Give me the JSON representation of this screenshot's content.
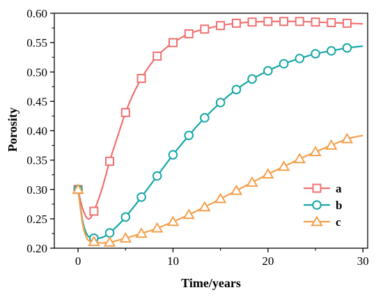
{
  "chart_data": {
    "type": "line",
    "title": "",
    "xlabel": "Time/years",
    "ylabel": "Porosity",
    "xlim": [
      -2.5,
      30.5
    ],
    "ylim": [
      0.2,
      0.6
    ],
    "xticks": [
      0,
      10,
      20,
      30
    ],
    "xtick_labels": [
      "0",
      "10",
      "20",
      "30"
    ],
    "yticks": [
      0.2,
      0.25,
      0.3,
      0.35,
      0.4,
      0.45,
      0.5,
      0.55,
      0.6
    ],
    "ytick_labels": [
      "0.20",
      "0.25",
      "0.30",
      "0.35",
      "0.40",
      "0.45",
      "0.50",
      "0.55",
      "0.60"
    ],
    "grid": false,
    "legend_position": "right",
    "series": [
      {
        "name": "a",
        "color": "#f07070",
        "marker": "square",
        "x": [
          0,
          1.67,
          3.33,
          5.0,
          6.67,
          8.33,
          10.0,
          11.67,
          13.33,
          15.0,
          16.67,
          18.33,
          20.0,
          21.67,
          23.33,
          25.0,
          26.67,
          28.33
        ],
        "y": [
          0.3,
          0.263,
          0.348,
          0.431,
          0.489,
          0.527,
          0.55,
          0.565,
          0.573,
          0.579,
          0.583,
          0.585,
          0.586,
          0.586,
          0.586,
          0.585,
          0.584,
          0.583
        ],
        "curve_x": [
          0,
          0.4,
          0.8,
          1.2,
          1.67,
          2.5,
          3.33,
          4.2,
          5.0,
          5.8,
          6.67,
          7.5,
          8.33,
          9.2,
          10.0,
          11.67,
          13.33,
          15.0,
          16.67,
          18.33,
          20.0,
          21.67,
          23.33,
          25.0,
          26.67,
          28.33,
          30.0
        ],
        "curve_y": [
          0.3,
          0.272,
          0.255,
          0.25,
          0.263,
          0.3,
          0.348,
          0.392,
          0.431,
          0.462,
          0.489,
          0.51,
          0.527,
          0.54,
          0.55,
          0.565,
          0.573,
          0.579,
          0.583,
          0.585,
          0.586,
          0.586,
          0.586,
          0.585,
          0.584,
          0.583,
          0.582
        ]
      },
      {
        "name": "b",
        "color": "#17a6a6",
        "marker": "circle",
        "x": [
          0,
          1.67,
          3.33,
          5.0,
          6.67,
          8.33,
          10.0,
          11.67,
          13.33,
          15.0,
          16.67,
          18.33,
          20.0,
          21.67,
          23.33,
          25.0,
          26.67,
          28.33
        ],
        "y": [
          0.3,
          0.217,
          0.226,
          0.253,
          0.287,
          0.323,
          0.359,
          0.392,
          0.422,
          0.448,
          0.47,
          0.488,
          0.502,
          0.514,
          0.523,
          0.531,
          0.536,
          0.541
        ],
        "curve_x": [
          0,
          0.5,
          1.0,
          1.67,
          2.5,
          3.33,
          4.2,
          5.0,
          6.67,
          8.33,
          10.0,
          11.67,
          13.33,
          15.0,
          16.67,
          18.33,
          20.0,
          21.67,
          23.33,
          25.0,
          26.67,
          28.33,
          30.0
        ],
        "curve_y": [
          0.3,
          0.245,
          0.222,
          0.217,
          0.218,
          0.226,
          0.239,
          0.253,
          0.287,
          0.323,
          0.359,
          0.392,
          0.422,
          0.448,
          0.47,
          0.488,
          0.502,
          0.514,
          0.523,
          0.531,
          0.536,
          0.541,
          0.544
        ]
      },
      {
        "name": "c",
        "color": "#f5a04c",
        "marker": "triangle",
        "x": [
          0,
          1.67,
          3.33,
          5.0,
          6.67,
          8.33,
          10.0,
          11.67,
          13.33,
          15.0,
          16.67,
          18.33,
          20.0,
          21.67,
          23.33,
          25.0,
          26.67,
          28.33
        ],
        "y": [
          0.3,
          0.211,
          0.21,
          0.217,
          0.225,
          0.234,
          0.245,
          0.257,
          0.27,
          0.284,
          0.298,
          0.312,
          0.326,
          0.339,
          0.352,
          0.364,
          0.375,
          0.386
        ],
        "curve_x": [
          0,
          0.5,
          1.0,
          1.67,
          2.5,
          3.33,
          5.0,
          6.67,
          8.33,
          10.0,
          11.67,
          13.33,
          15.0,
          16.67,
          18.33,
          20.0,
          21.67,
          23.33,
          25.0,
          26.67,
          28.33,
          30.0
        ],
        "curve_y": [
          0.3,
          0.24,
          0.215,
          0.211,
          0.209,
          0.21,
          0.217,
          0.225,
          0.234,
          0.245,
          0.257,
          0.27,
          0.284,
          0.298,
          0.312,
          0.326,
          0.339,
          0.352,
          0.364,
          0.375,
          0.386,
          0.392
        ]
      }
    ]
  }
}
